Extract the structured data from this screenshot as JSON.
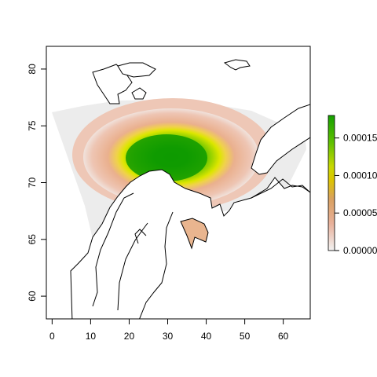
{
  "chart_data": {
    "type": "heatmap",
    "title": "",
    "xlabel": "",
    "ylabel": "",
    "xlim": [
      -1.5,
      67
    ],
    "ylim": [
      58,
      82
    ],
    "x_ticks": [
      "0",
      "10",
      "20",
      "30",
      "40",
      "50",
      "60"
    ],
    "y_ticks": [
      "60",
      "65",
      "70",
      "75",
      "80"
    ],
    "colorbar": {
      "ticks": [
        "0.00000",
        "0.00005",
        "0.00010",
        "0.00015"
      ],
      "range": [
        0,
        0.00018
      ],
      "colors": [
        "#f2f2f2",
        "#e8b09a",
        "#d9a060",
        "#dcc400",
        "#f5f000",
        "#5fc000",
        "#15a000"
      ]
    },
    "density_peak": {
      "lon": 27,
      "lat": 71.5,
      "value": 0.00018
    },
    "grid": false
  }
}
